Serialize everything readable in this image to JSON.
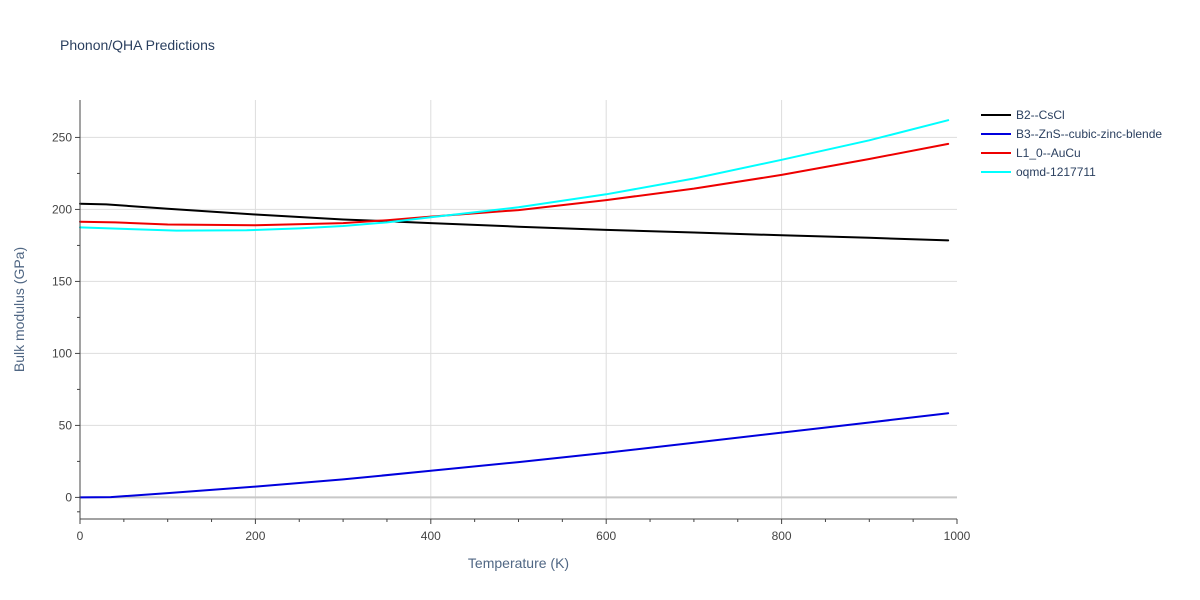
{
  "chart_data": {
    "type": "line",
    "title": "Phonon/QHA Predictions",
    "xlabel": "Temperature (K)",
    "ylabel": "Bulk modulus (GPa)",
    "xlim": [
      0,
      1000
    ],
    "ylim": [
      -15,
      276
    ],
    "x_ticks": [
      0,
      200,
      400,
      600,
      800,
      1000
    ],
    "x_tick_labels": [
      "0",
      "200",
      "400",
      "600",
      "800",
      "1000"
    ],
    "x_minor_ticks": [
      50,
      100,
      150,
      250,
      300,
      350,
      450,
      500,
      550,
      650,
      700,
      750,
      850,
      900,
      950
    ],
    "y_ticks": [
      0,
      50,
      100,
      150,
      200,
      250
    ],
    "y_tick_labels": [
      "0",
      "50",
      "100",
      "150",
      "200",
      "250"
    ],
    "y_minor_ticks": [
      -10,
      25,
      75,
      125,
      175,
      225
    ],
    "grid": true,
    "legend_position": "top-right",
    "series": [
      {
        "name": "B2--CsCl",
        "color": "#000000",
        "x": [
          0,
          30,
          100,
          200,
          300,
          350,
          400,
          500,
          600,
          700,
          800,
          900,
          990
        ],
        "y": [
          204,
          203.5,
          200.5,
          196.5,
          193,
          191.8,
          190.5,
          188,
          185.8,
          184,
          182,
          180.3,
          178.5
        ]
      },
      {
        "name": "B3--ZnS--cubic-zinc-blende",
        "color": "#0000dd",
        "x": [
          0,
          35,
          100,
          200,
          300,
          400,
          500,
          600,
          700,
          800,
          900,
          990
        ],
        "y": [
          0,
          0.2,
          3,
          7.5,
          12.5,
          18.5,
          24.5,
          31,
          38,
          45,
          52,
          58.5
        ]
      },
      {
        "name": "L1_0--AuCu",
        "color": "#ee0000",
        "x": [
          0,
          40,
          100,
          200,
          300,
          350,
          400,
          500,
          600,
          700,
          800,
          900,
          990
        ],
        "y": [
          191.5,
          191,
          189.5,
          189,
          190.5,
          192.5,
          195,
          199.5,
          206.5,
          214.5,
          224,
          235,
          245.5
        ]
      },
      {
        "name": "oqmd-1217711",
        "color": "#00ffff",
        "x": [
          0,
          50,
          110,
          190,
          250,
          300,
          350,
          400,
          500,
          600,
          700,
          800,
          900,
          990
        ],
        "y": [
          187.5,
          186.5,
          185.3,
          185.5,
          186.8,
          188.5,
          191,
          194.5,
          201.5,
          210.5,
          221.5,
          234.5,
          248,
          262
        ]
      }
    ]
  }
}
